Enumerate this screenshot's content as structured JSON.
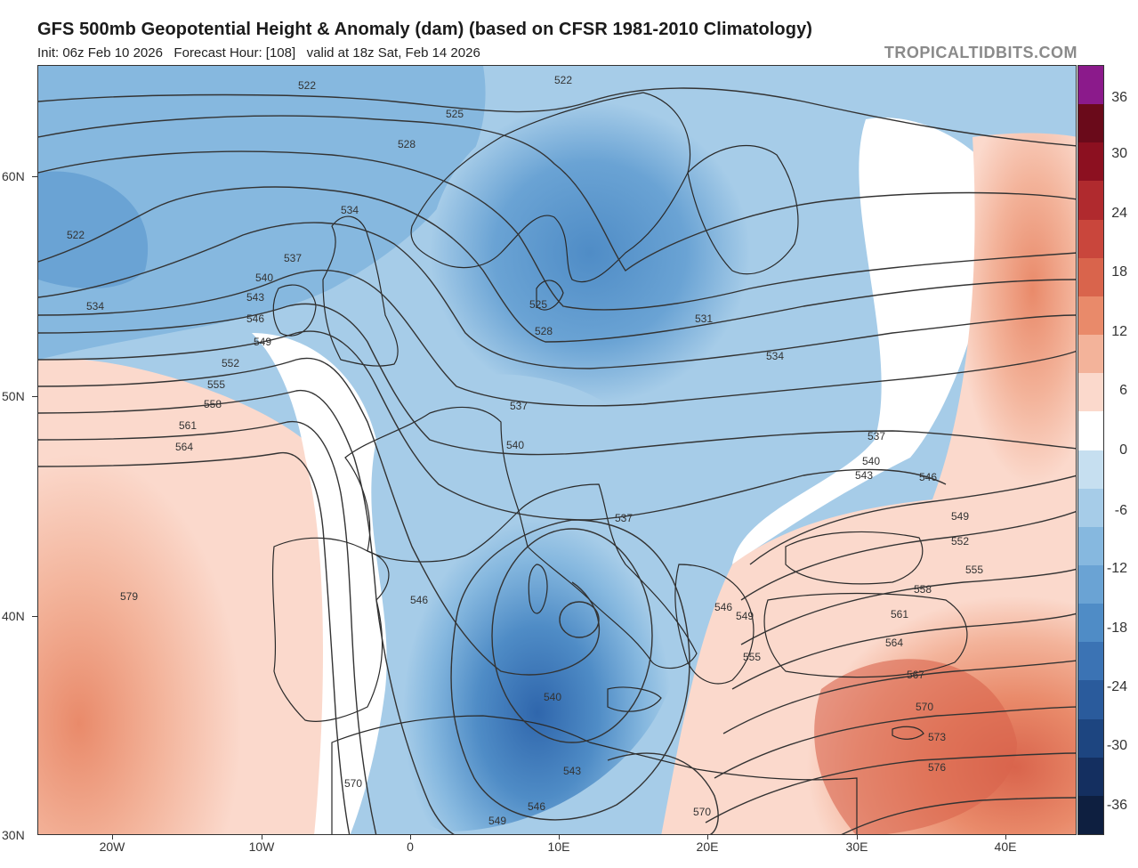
{
  "header": {
    "title": "GFS 500mb Geopotential Height & Anomaly (dam) (based on CFSR 1981-2010 Climatology)",
    "subtitle": "Init: 06z Feb 10 2026   Forecast Hour: [108]   valid at 18z Sat, Feb 14 2026",
    "brand": "TROPICALTIDBITS.COM"
  },
  "axes": {
    "lat_labels": [
      "60N",
      "50N",
      "40N",
      "30N"
    ],
    "lon_labels": [
      "20W",
      "10W",
      "0",
      "10E",
      "20E",
      "30E",
      "40E"
    ]
  },
  "colorbar": {
    "labels": [
      "36",
      "30",
      "24",
      "18",
      "12",
      "6",
      "0",
      "-6",
      "-12",
      "-18",
      "-24",
      "-30",
      "-36"
    ],
    "colors": [
      "#8b1a8b",
      "#6a0a1a",
      "#8c1020",
      "#b02a2e",
      "#c9463c",
      "#d9644c",
      "#e98a6a",
      "#f3b39a",
      "#fbd9cc",
      "#ffffff",
      "#c6dff0",
      "#a6cce8",
      "#86b8df",
      "#6aa3d4",
      "#4f8cc6",
      "#3b73b4",
      "#2a5b9c",
      "#1d4580",
      "#142f60",
      "#0e1f40"
    ]
  },
  "contours": {
    "labels": [
      "522",
      "525",
      "528",
      "531",
      "534",
      "537",
      "540",
      "543",
      "546",
      "549",
      "552",
      "555",
      "558",
      "561",
      "564",
      "567",
      "570",
      "573",
      "576",
      "579"
    ]
  },
  "map": {
    "land_color": "#2a2a2a",
    "contour_color": "#333333"
  }
}
